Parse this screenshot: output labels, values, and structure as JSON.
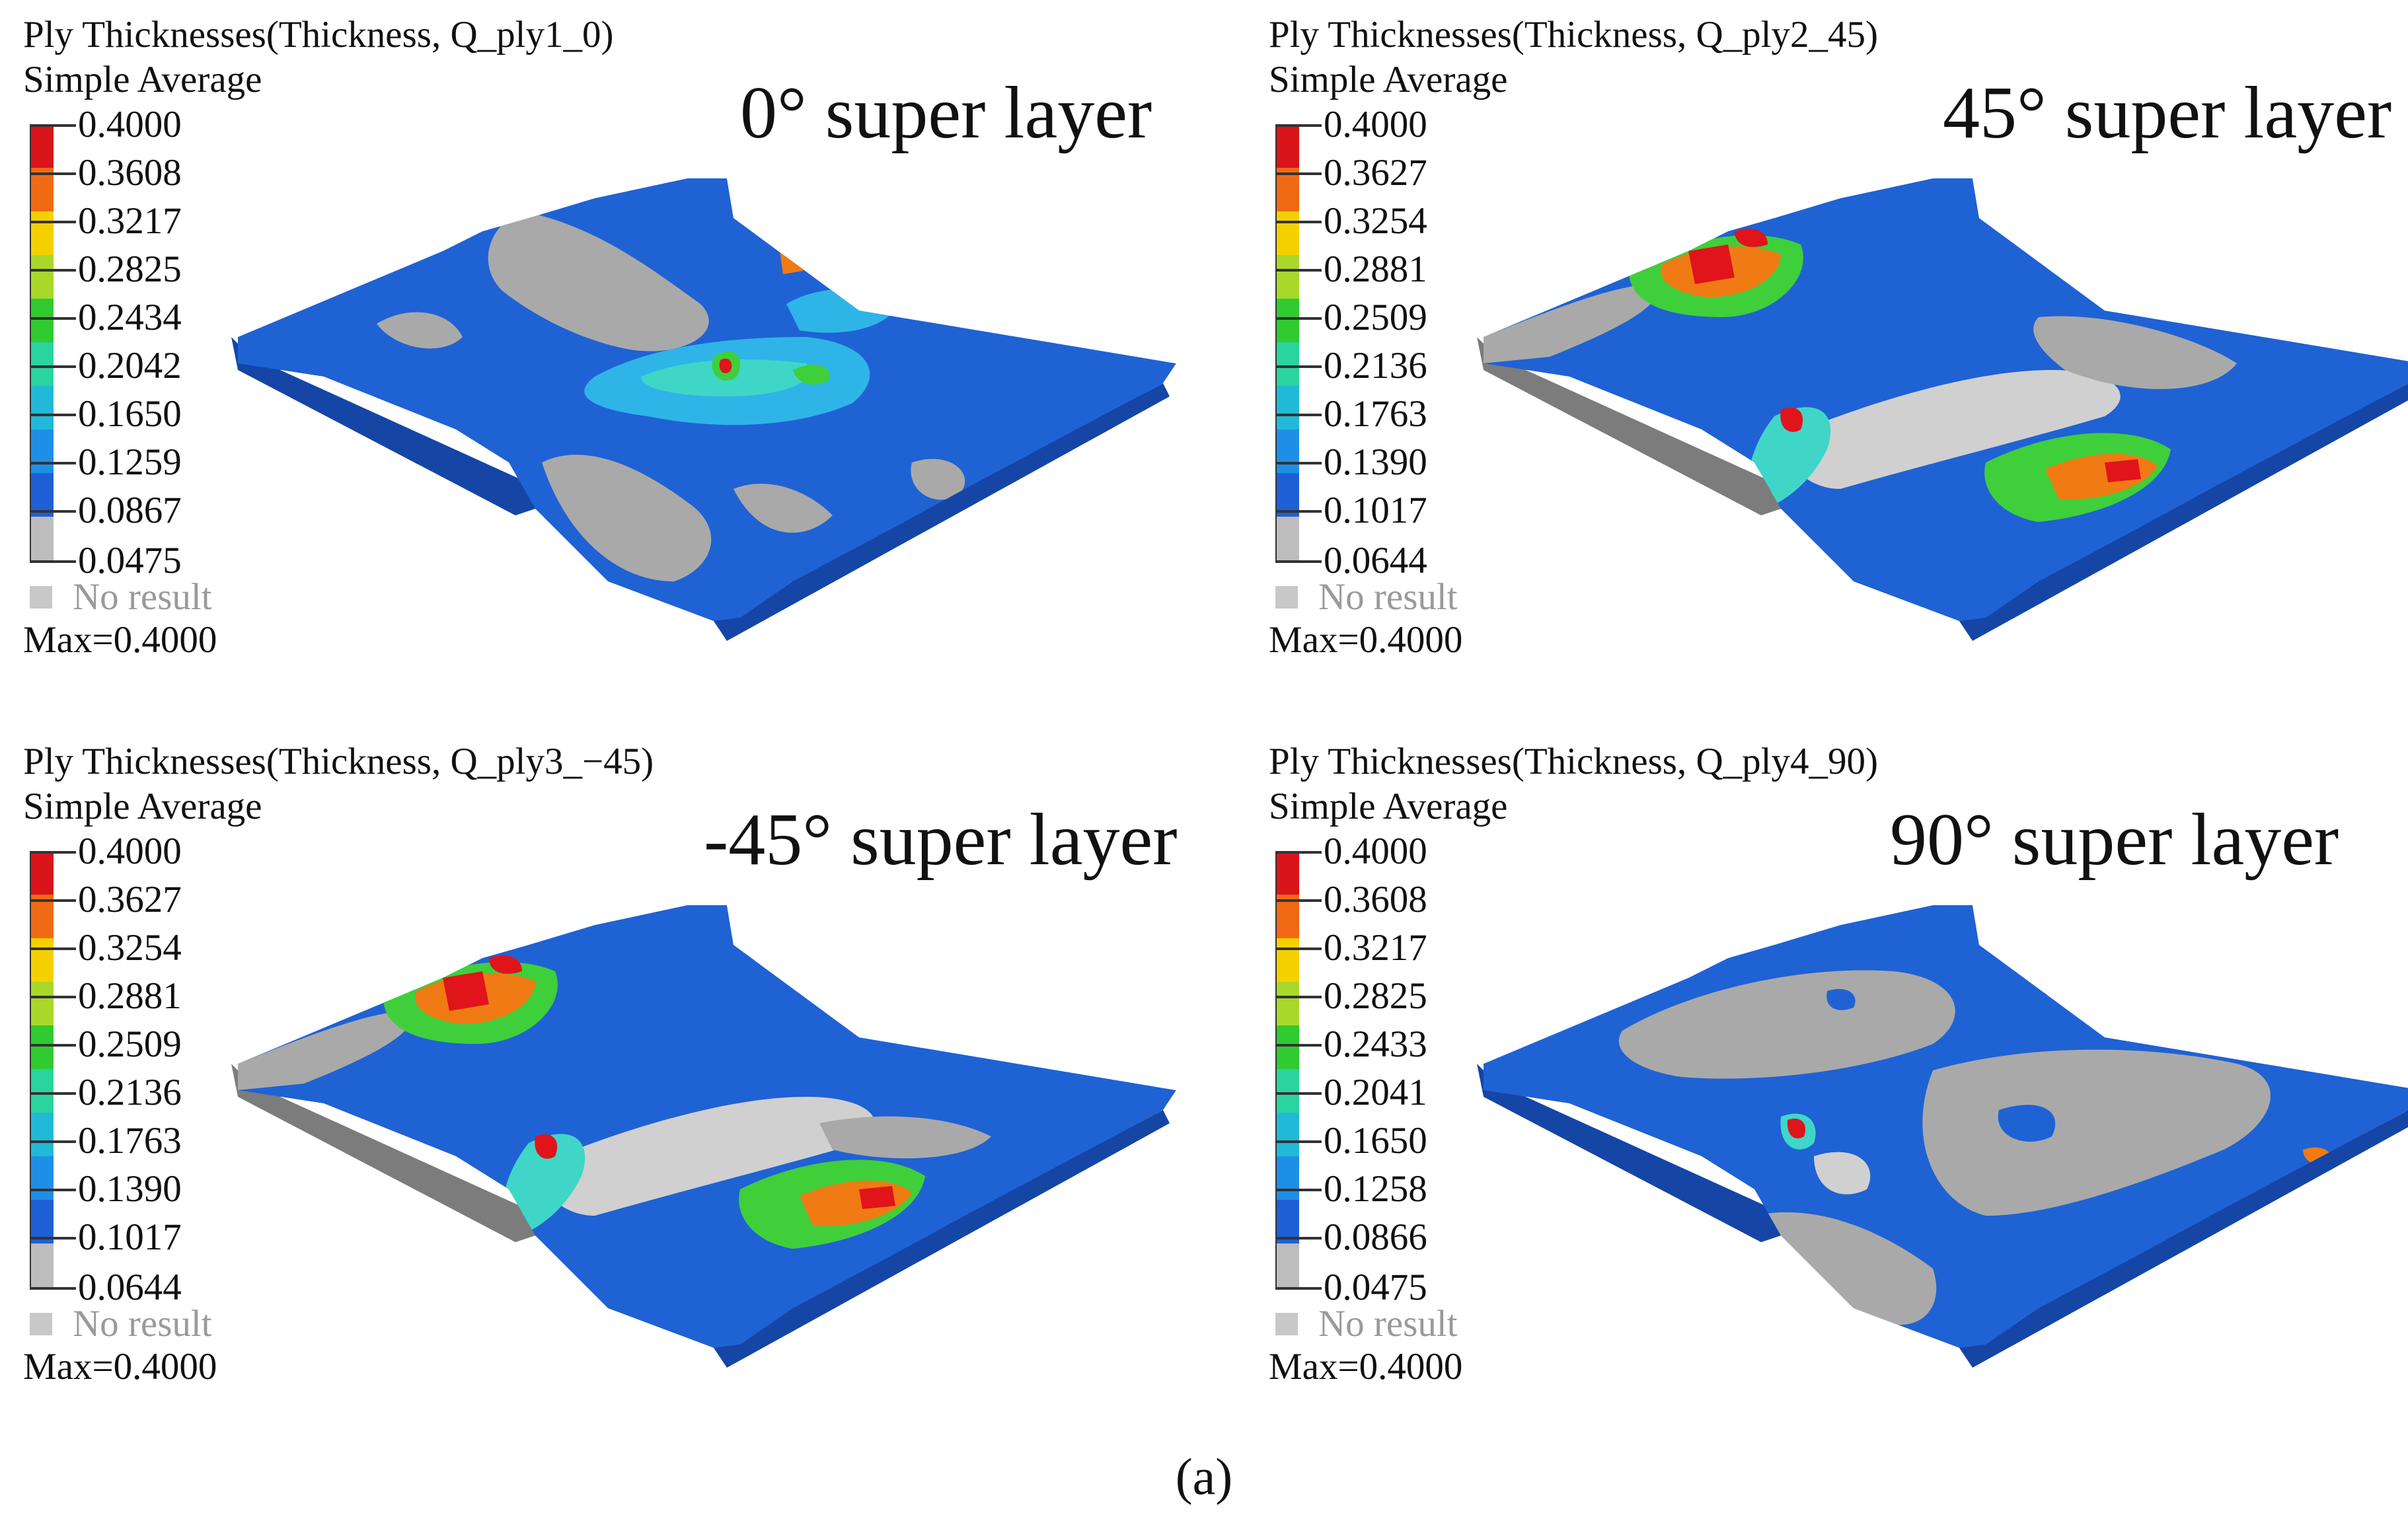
{
  "legend_colors": [
    "#d9141b",
    "#f06a14",
    "#f5d000",
    "#a8d82a",
    "#2fcb30",
    "#2ad49d",
    "#22b9d8",
    "#1e8fe6",
    "#1f5fd6",
    "#bdbdbd"
  ],
  "colors": {
    "red": "#e0141a",
    "orange": "#f07a14",
    "yellow": "#f2d21a",
    "green": "#3fcf3a",
    "cyan": "#3fd6c8",
    "lightblue": "#2fb4e8",
    "blue": "#1f62d4",
    "darkblue": "#1546a6",
    "gray": "#a9a9a9",
    "lightgray": "#d0d0d0",
    "darkgray": "#7c7c7c"
  },
  "panels": [
    {
      "title": "Ply Thicknesses(Thickness, Q_ply1_0)",
      "subtitle": "Simple Average",
      "heading": "0° super layer",
      "ticks": [
        "0.4000",
        "0.3608",
        "0.3217",
        "0.2825",
        "0.2434",
        "0.2042",
        "0.1650",
        "0.1259",
        "0.0867",
        "0.0475"
      ],
      "no_result": "No result",
      "max": "Max=0.4000"
    },
    {
      "title": "Ply Thicknesses(Thickness, Q_ply2_45)",
      "subtitle": "Simple Average",
      "heading": "45° super layer",
      "ticks": [
        "0.4000",
        "0.3627",
        "0.3254",
        "0.2881",
        "0.2509",
        "0.2136",
        "0.1763",
        "0.1390",
        "0.1017",
        "0.0644"
      ],
      "no_result": "No result",
      "max": "Max=0.4000"
    },
    {
      "title": "Ply Thicknesses(Thickness, Q_ply3_−45)",
      "subtitle": "Simple Average",
      "heading": "-45° super layer",
      "ticks": [
        "0.4000",
        "0.3627",
        "0.3254",
        "0.2881",
        "0.2509",
        "0.2136",
        "0.1763",
        "0.1390",
        "0.1017",
        "0.0644"
      ],
      "no_result": "No result",
      "max": "Max=0.4000"
    },
    {
      "title": "Ply Thicknesses(Thickness, Q_ply4_90)",
      "subtitle": "Simple Average",
      "heading": "90° super layer",
      "ticks": [
        "0.4000",
        "0.3608",
        "0.3217",
        "0.2825",
        "0.2433",
        "0.2041",
        "0.1650",
        "0.1258",
        "0.0866",
        "0.0475"
      ],
      "no_result": "No result",
      "max": "Max=0.4000"
    }
  ],
  "caption": "(a)"
}
